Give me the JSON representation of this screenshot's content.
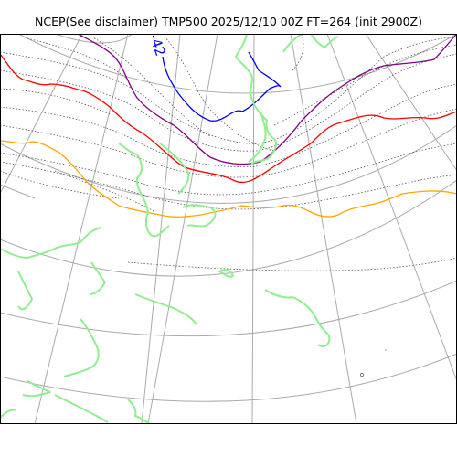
{
  "title": "NCEP(See disclaimer) TMP500 2025/12/10 00Z FT=264 (init 2900Z)",
  "contour_label": "-42",
  "colors": {
    "coastline": "#90ee90",
    "graticule": "#aaaaaa",
    "dotted_contour": "#555555",
    "isotherm_blue": "#0000ff",
    "isotherm_purple": "#800080",
    "isotherm_red": "#ff0000",
    "isotherm_orange": "#ffa500",
    "frame": "#000000"
  }
}
